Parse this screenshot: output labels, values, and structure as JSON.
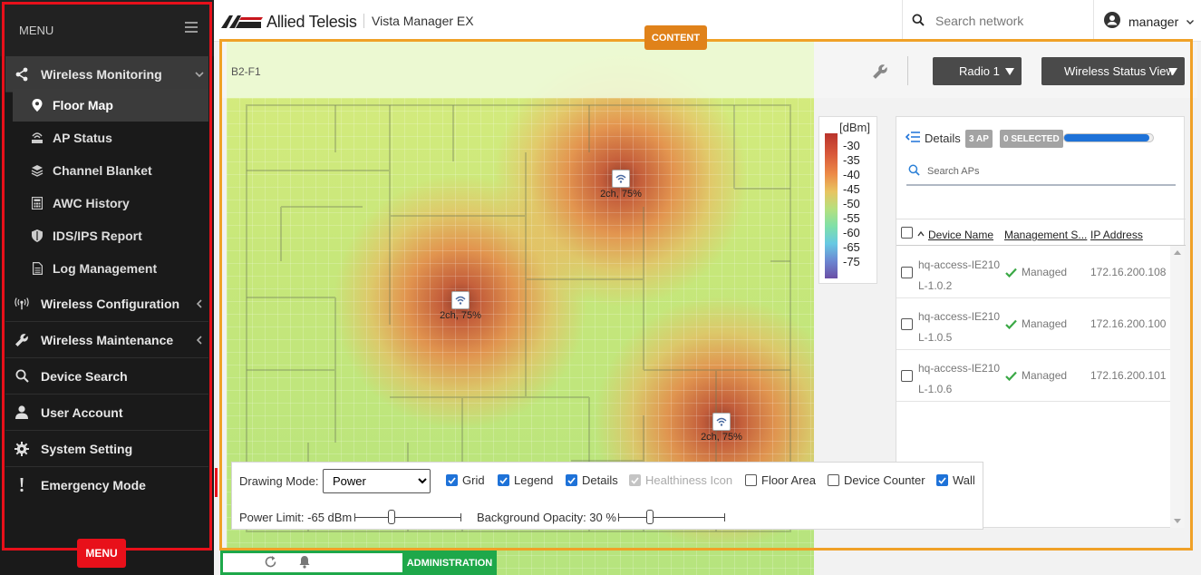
{
  "app": {
    "brand": "Allied Telesis",
    "product": "Vista Manager EX"
  },
  "header": {
    "search_placeholder": "Search network",
    "user": "manager"
  },
  "menu": {
    "title": "MENU",
    "tag": "MENU",
    "items": [
      {
        "label": "Wireless Monitoring",
        "icon": "share-icon"
      },
      {
        "label": "Wireless Configuration",
        "icon": "antenna-icon"
      },
      {
        "label": "Wireless Maintenance",
        "icon": "wrench-icon"
      },
      {
        "label": "Device Search",
        "icon": "search-icon"
      },
      {
        "label": "User Account",
        "icon": "user-icon"
      },
      {
        "label": "System Setting",
        "icon": "gear-icon"
      },
      {
        "label": "Emergency Mode",
        "icon": "exclamation-icon"
      }
    ],
    "subitems": [
      {
        "label": "Floor Map",
        "icon": "map-pin-icon"
      },
      {
        "label": "AP Status",
        "icon": "ap-status-icon"
      },
      {
        "label": "Channel Blanket",
        "icon": "layers-icon"
      },
      {
        "label": "AWC History",
        "icon": "calculator-icon"
      },
      {
        "label": "IDS/IPS Report",
        "icon": "shield-icon"
      },
      {
        "label": "Log Management",
        "icon": "document-icon"
      }
    ]
  },
  "content": {
    "tag": "CONTENT",
    "floor": "B2-F1",
    "radio_button": "Radio 1",
    "view_button": "Wireless Status View"
  },
  "aps": [
    {
      "label": "2ch, 75%"
    },
    {
      "label": "2ch, 75%"
    },
    {
      "label": "2ch, 75%"
    }
  ],
  "legend": {
    "unit": "[dBm]",
    "ticks": [
      "-30",
      "-35",
      "-40",
      "-45",
      "-50",
      "-55",
      "-60",
      "-65",
      "-75"
    ]
  },
  "details": {
    "label": "Details",
    "ap_count": "3 AP",
    "selected": "0 SELECTED",
    "search_placeholder": "Search APs",
    "columns": [
      "Device Name",
      "Management S...",
      "IP Address"
    ],
    "rows": [
      {
        "name1": "hq-access-IE210",
        "name2": "L-1.0.2",
        "status": "Managed",
        "ip": "172.16.200.108"
      },
      {
        "name1": "hq-access-IE210",
        "name2": "L-1.0.5",
        "status": "Managed",
        "ip": "172.16.200.100"
      },
      {
        "name1": "hq-access-IE210",
        "name2": "L-1.0.6",
        "status": "Managed",
        "ip": "172.16.200.101"
      }
    ]
  },
  "toolbar": {
    "drawing_mode_label": "Drawing Mode:",
    "drawing_mode_value": "Power",
    "checkboxes": [
      {
        "label": "Grid",
        "state": "checked"
      },
      {
        "label": "Legend",
        "state": "checked"
      },
      {
        "label": "Details",
        "state": "checked"
      },
      {
        "label": "Healthiness Icon",
        "state": "disabled-checked"
      },
      {
        "label": "Floor Area",
        "state": "unchecked"
      },
      {
        "label": "Device Counter",
        "state": "unchecked"
      },
      {
        "label": "Wall",
        "state": "checked"
      }
    ],
    "power_limit_label": "Power Limit: -65 dBm",
    "power_limit_level": 0.35,
    "bg_opacity_label": "Background Opacity: 30 %",
    "bg_opacity_level": 0.3
  },
  "admin": {
    "tag": "ADMINISTRATION"
  },
  "colors": {
    "menu_border": "#e8101a",
    "content_border": "#f0a127",
    "admin_border": "#1ea84a",
    "accent": "#1e72d8"
  }
}
